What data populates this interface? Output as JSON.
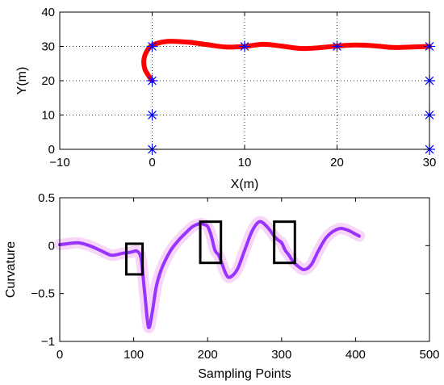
{
  "chart_data": [
    {
      "type": "line",
      "xlabel": "X(m)",
      "ylabel": "Y(m)",
      "xlim": [
        -10,
        30
      ],
      "ylim": [
        0,
        40
      ],
      "xticks": [
        -10,
        0,
        10,
        20,
        30
      ],
      "yticks": [
        0,
        10,
        20,
        30,
        40
      ],
      "grid": true,
      "colors": {
        "path": "#ff0000",
        "markers": "#0000ff"
      },
      "series": [
        {
          "marker": "line",
          "x": [
            0,
            -0.4,
            -0.8,
            -0.9,
            -0.6,
            0,
            1,
            2,
            4,
            6,
            8,
            10,
            12,
            14,
            16,
            18,
            20,
            22,
            24,
            26,
            28,
            30
          ],
          "y": [
            20,
            21.5,
            23.5,
            26,
            28.5,
            30.3,
            31.2,
            31.5,
            31.2,
            30.5,
            29.8,
            30,
            30.6,
            30.1,
            29.4,
            29.6,
            30.1,
            30.4,
            30.2,
            29.7,
            29.8,
            30
          ]
        },
        {
          "marker": "asterisk",
          "x": [
            0,
            0,
            0,
            0,
            10,
            20,
            30,
            30,
            30,
            30
          ],
          "y": [
            0,
            10,
            20,
            30,
            30,
            30,
            30,
            20,
            10,
            0
          ]
        }
      ]
    },
    {
      "type": "line",
      "xlabel": "Sampling Points",
      "ylabel": "Curvature",
      "xlim": [
        0,
        500
      ],
      "ylim": [
        -1,
        0.5
      ],
      "xticks": [
        0,
        100,
        200,
        300,
        400,
        500
      ],
      "yticks": [
        -1,
        -0.5,
        0,
        0.5
      ],
      "grid": false,
      "colors": {
        "curve": "#9933ff",
        "boxes": "#000000"
      },
      "series": [
        {
          "x": [
            0,
            10,
            25,
            40,
            55,
            70,
            85,
            95,
            100,
            105,
            110,
            115,
            120,
            125,
            130,
            135,
            140,
            150,
            160,
            170,
            180,
            190,
            195,
            200,
            205,
            210,
            215,
            220,
            225,
            230,
            240,
            250,
            260,
            270,
            280,
            290,
            295,
            300,
            305,
            310,
            315,
            320,
            330,
            340,
            350,
            360,
            370,
            380,
            390,
            400,
            405
          ],
          "y": [
            0.01,
            0.02,
            0.03,
            0.0,
            -0.05,
            -0.1,
            -0.08,
            -0.07,
            -0.06,
            -0.06,
            -0.14,
            -0.5,
            -0.85,
            -0.7,
            -0.45,
            -0.3,
            -0.2,
            -0.05,
            0.05,
            0.13,
            0.2,
            0.23,
            0.22,
            0.2,
            0.1,
            -0.05,
            -0.1,
            -0.2,
            -0.3,
            -0.33,
            -0.25,
            -0.05,
            0.15,
            0.25,
            0.2,
            0.1,
            0.06,
            0.03,
            -0.05,
            -0.1,
            -0.16,
            -0.2,
            -0.25,
            -0.2,
            -0.05,
            0.08,
            0.15,
            0.18,
            0.16,
            0.12,
            0.1
          ]
        }
      ],
      "annotation_boxes": [
        {
          "x": [
            90,
            112
          ],
          "y": [
            -0.3,
            0.02
          ]
        },
        {
          "x": [
            190,
            218
          ],
          "y": [
            -0.18,
            0.25
          ]
        },
        {
          "x": [
            290,
            318
          ],
          "y": [
            -0.18,
            0.25
          ]
        }
      ]
    }
  ]
}
